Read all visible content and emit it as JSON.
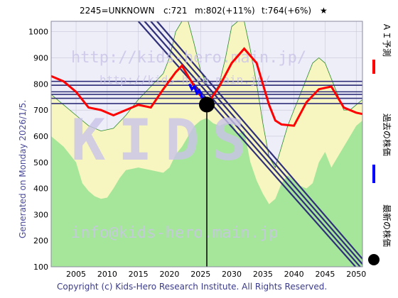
{
  "header": {
    "code_name": "2245=UNKNOWN",
    "current": "c:721",
    "mid": "m:802(+11%)",
    "target": "t:764(+6%)",
    "star": "★"
  },
  "side_text": "Generated on Monday 2026/1/5.",
  "footer": "Copyright (c) Kids-Hero Research Institute. All Rights Reserved.",
  "watermarks": {
    "top": "http://kids-hero.main.jp/",
    "middle": "http://kids-hero.main.jp/",
    "big": "KIDS",
    "bottom": "info@kids-hero.main.jp"
  },
  "legend": [
    {
      "label": "ＡＩ予測",
      "color": "#ff0000",
      "type": "line"
    },
    {
      "label": "過去の株価",
      "color": "#0000ff",
      "type": "line"
    },
    {
      "label": "最新の株価",
      "color": "#000000",
      "type": "dot"
    }
  ],
  "colors": {
    "green_fill": "#a6e69a",
    "yellow_fill": "#f8f6c0",
    "plot_bg": "#eeeef8",
    "grid": "#c8c8d8",
    "band": "#30307a",
    "prediction": "#ff0000",
    "history": "#0000ff"
  },
  "chart_data": {
    "type": "line",
    "xlim": [
      2001,
      2051
    ],
    "ylim": [
      100,
      1040
    ],
    "x_ticks": [
      2005,
      2010,
      2015,
      2020,
      2025,
      2030,
      2035,
      2040,
      2045,
      2050
    ],
    "y_ticks": [
      100,
      200,
      300,
      400,
      500,
      600,
      700,
      800,
      900,
      1000
    ],
    "latest_price": {
      "x": 2026,
      "y": 721
    },
    "history": {
      "name": "過去の株価",
      "x": [
        2023.2,
        2023.6,
        2024.0,
        2024.4,
        2024.8,
        2025.2,
        2025.6,
        2026.0
      ],
      "y": [
        800,
        780,
        790,
        765,
        775,
        750,
        745,
        735
      ]
    },
    "prediction": {
      "name": "ＡＩ予測",
      "x": [
        2001,
        2003,
        2005,
        2007,
        2009,
        2011,
        2013,
        2015,
        2017,
        2019,
        2021,
        2022,
        2024,
        2026,
        2028,
        2030,
        2032,
        2034,
        2035,
        2036,
        2037,
        2038,
        2040,
        2042,
        2044,
        2046,
        2048,
        2050,
        2051
      ],
      "y": [
        830,
        810,
        770,
        710,
        700,
        680,
        700,
        720,
        710,
        780,
        845,
        870,
        790,
        720,
        790,
        880,
        935,
        880,
        800,
        720,
        660,
        645,
        640,
        730,
        780,
        790,
        710,
        690,
        685
      ]
    },
    "band_lines": [
      {
        "x": [
          2015,
          2051
        ],
        "y": [
          1040,
          70
        ]
      },
      {
        "x": [
          2016,
          2051
        ],
        "y": [
          1040,
          90
        ]
      },
      {
        "x": [
          2017,
          2051
        ],
        "y": [
          1040,
          110
        ]
      },
      {
        "x": [
          2018,
          2051
        ],
        "y": [
          1040,
          130
        ]
      }
    ],
    "horizontal_levels": [
      725,
      745,
      760,
      770,
      795,
      810
    ],
    "green_area": {
      "x": [
        2001,
        2003,
        2005,
        2006,
        2007,
        2008,
        2009,
        2010,
        2011,
        2012,
        2013,
        2015,
        2017,
        2019,
        2020,
        2021,
        2022,
        2023,
        2024,
        2025,
        2026,
        2027,
        2028,
        2029,
        2030,
        2031,
        2032,
        2033,
        2034,
        2035,
        2036,
        2037,
        2038,
        2039,
        2040,
        2041,
        2042,
        2043,
        2044,
        2045,
        2046,
        2047,
        2048,
        2049,
        2050,
        2051
      ],
      "y": [
        600,
        560,
        500,
        420,
        390,
        370,
        360,
        365,
        400,
        440,
        470,
        480,
        470,
        460,
        480,
        530,
        560,
        600,
        640,
        660,
        670,
        650,
        640,
        650,
        650,
        610,
        620,
        500,
        430,
        380,
        340,
        360,
        420,
        450,
        430,
        410,
        400,
        420,
        500,
        540,
        480,
        520,
        560,
        600,
        640,
        660
      ]
    },
    "yellow_area": {
      "x": [
        2001,
        2003,
        2005,
        2007,
        2009,
        2011,
        2013,
        2015,
        2017,
        2019,
        2020,
        2021,
        2022,
        2023,
        2024,
        2025,
        2026,
        2027,
        2028,
        2029,
        2030,
        2031,
        2032,
        2033,
        2034,
        2035,
        2036,
        2037,
        2038,
        2039,
        2040,
        2041,
        2042,
        2043,
        2044,
        2045,
        2046,
        2047,
        2048,
        2049,
        2050,
        2051
      ],
      "y": [
        760,
        720,
        680,
        640,
        620,
        630,
        680,
        740,
        790,
        840,
        900,
        1000,
        1040,
        1040,
        950,
        850,
        800,
        760,
        800,
        900,
        1020,
        1040,
        1040,
        930,
        800,
        650,
        520,
        480,
        560,
        640,
        700,
        760,
        820,
        880,
        900,
        880,
        820,
        760,
        700,
        700,
        720,
        740
      ]
    }
  }
}
